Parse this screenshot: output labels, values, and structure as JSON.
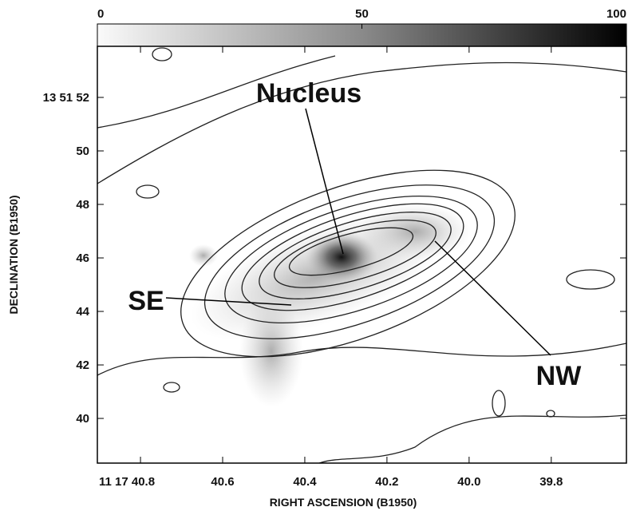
{
  "chart_data": {
    "type": "contour",
    "xlabel": "RIGHT ASCENSION (B1950)",
    "ylabel": "DECLINATION (B1950)",
    "xlim": [
      40.905,
      39.617
    ],
    "xticks": [
      {
        "value": 40.8,
        "label": "11 17 40.8"
      },
      40.6,
      40.4,
      40.2,
      {
        "value": 40,
        "label": "40.0"
      },
      39.8
    ],
    "ylim": [
      38.33,
      53.91
    ],
    "yticks": [
      {
        "value": 52,
        "label": "13 51 52"
      },
      50,
      48,
      46,
      44,
      42,
      40
    ],
    "colorbar": {
      "lim": [
        0,
        100
      ],
      "ticks": [
        0,
        50,
        100
      ]
    },
    "annotations": [
      "Nucleus",
      "SE",
      "NW"
    ]
  }
}
